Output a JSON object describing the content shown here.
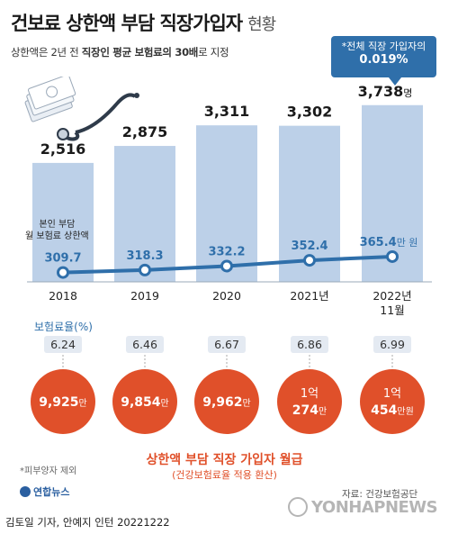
{
  "header": {
    "title": "건보료 상한액 부담 직장가입자",
    "title_suffix": "현황",
    "subtitle_pre": "상한액은 2년 전 ",
    "subtitle_bold": "직장인 평균 보험료의 30배",
    "subtitle_post": "로 지정"
  },
  "callout": {
    "line1": "*전체 직장 가입자의",
    "line2": "0.019%"
  },
  "annotation": {
    "line1": "본인 부담",
    "line2": "월 보험료 상한액"
  },
  "rate_section_label": "보험료율(%)",
  "income": {
    "title": "상한액 부담 직장 가입자 월급",
    "subtitle": "(건강보험료율 적용 환산)"
  },
  "footer": {
    "footnote": "*피부양자 제외",
    "source": "자료: 건강보험공단",
    "logo": "연합뉴스",
    "watermark": "YONHAPNEWS",
    "credit": "김토일 기자, 안예지 인턴  20221222"
  },
  "colors": {
    "bar": "#bcd0e8",
    "line": "#2f6faa",
    "rate_box": "#e4eaf2",
    "income_circle": "#e0502a",
    "accent": "#2f6faa"
  },
  "chart_data": [
    {
      "type": "bar",
      "categories": [
        "2018",
        "2019",
        "2020",
        "2021년",
        "2022년 11월"
      ],
      "values": [
        2516,
        2875,
        3311,
        3302,
        3738
      ],
      "labels": [
        "2,516",
        "2,875",
        "3,311",
        "3,302",
        "3,738"
      ],
      "unit_last": "명",
      "title": "",
      "ylim": [
        0,
        4000
      ]
    },
    {
      "type": "line",
      "categories": [
        "2018",
        "2019",
        "2020",
        "2021년",
        "2022년 11월"
      ],
      "values": [
        309.7,
        318.3,
        332.2,
        352.4,
        365.4
      ],
      "labels": [
        "309.7",
        "318.3",
        "332.2",
        "352.4",
        "365.4"
      ],
      "unit_last": "만 원"
    },
    {
      "type": "table",
      "name": "보험료율(%)",
      "values": [
        6.24,
        6.46,
        6.67,
        6.86,
        6.99
      ],
      "labels": [
        "6.24",
        "6.46",
        "6.67",
        "6.86",
        "6.99"
      ]
    },
    {
      "type": "table",
      "name": "상한액 부담 직장 가입자 월급",
      "labels": [
        {
          "main": "9,925",
          "unit": "만"
        },
        {
          "main": "9,854",
          "unit": "만"
        },
        {
          "main": "9,962",
          "unit": "만"
        },
        {
          "main": "1억",
          "main2": "274",
          "unit": "만"
        },
        {
          "main": "1억",
          "main2": "454",
          "unit": "만원"
        }
      ]
    }
  ]
}
